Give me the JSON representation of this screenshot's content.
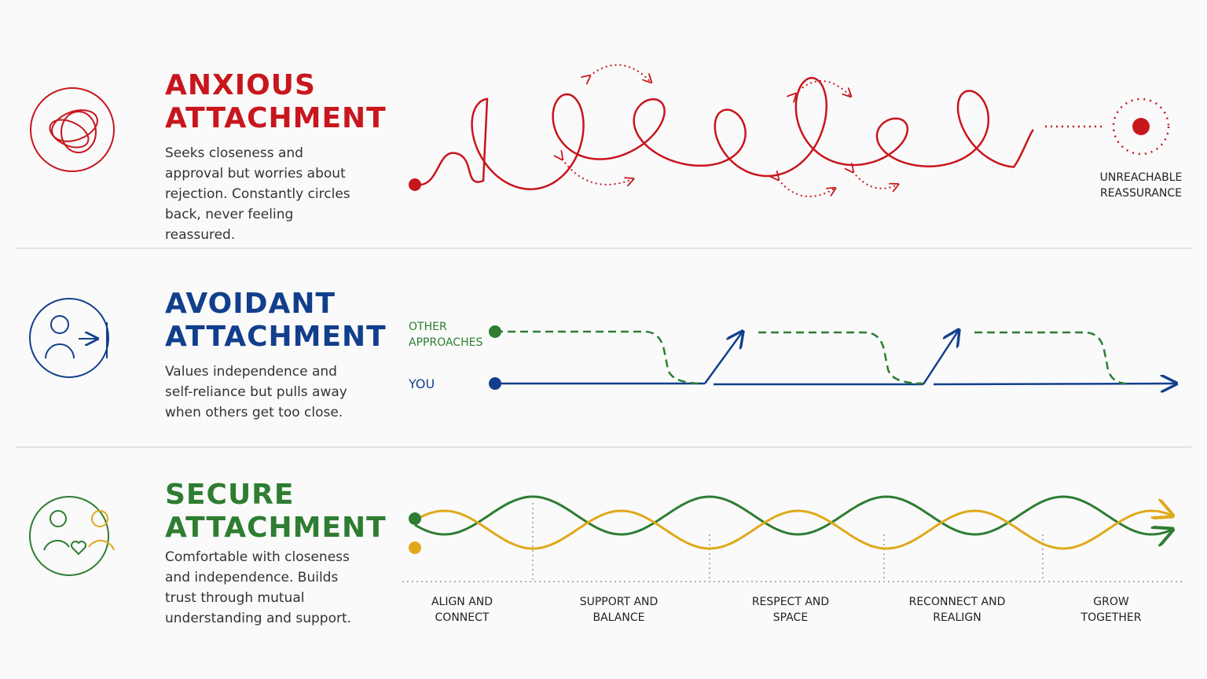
{
  "sections": [
    {
      "title": "ANXIOUS ATTACHMENT",
      "description": "Seeks closeness and approval but worries about rejection. Constantly circles back, never feeling reassured.",
      "label": "UNREACHABLE REASSURANCE"
    },
    {
      "title": "AVOIDANT ATTACHMENT",
      "description": "Values independence and self-reliance but pulls away when others get too close.",
      "labels": [
        "OTHER APPROACHES",
        "YOU"
      ]
    },
    {
      "title": "SECURE ATTACHMENT",
      "description": "Comfortable with closeness and independence. Builds trust through mutual understanding and support.",
      "stages": [
        "ALIGN AND CONNECT",
        "SUPPORT AND BALANCE",
        "RESPECT AND SPACE",
        "RECONNECT AND REALIGN",
        "GROW TOGETHER"
      ]
    }
  ]
}
